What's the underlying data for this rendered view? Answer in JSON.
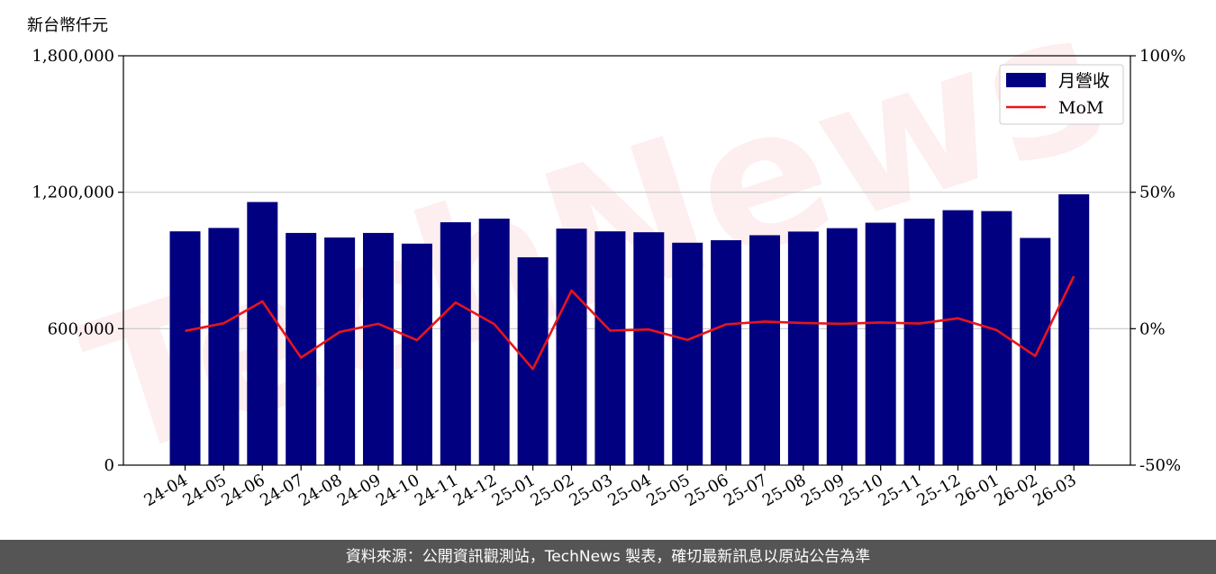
{
  "unit_label": "新台幣仟元",
  "footer_text": "資料來源：公開資訊觀測站，TechNews 製表，確切最新訊息以原站公告為準",
  "watermark": "TechNews",
  "colors": {
    "bar": "#000080",
    "line": "#e8141c",
    "grid": "#c8c8c8",
    "footer_bg": "#555555"
  },
  "chart_data": {
    "type": "bar",
    "categories": [
      "24-04",
      "24-05",
      "24-06",
      "24-07",
      "24-08",
      "24-09",
      "24-10",
      "24-11",
      "24-12",
      "25-01",
      "25-02",
      "25-03",
      "25-04",
      "25-05",
      "25-06",
      "25-07",
      "25-08",
      "25-09",
      "25-10",
      "25-11",
      "25-12",
      "26-01",
      "26-02",
      "26-03"
    ],
    "series": [
      {
        "name": "月營收",
        "type": "bar",
        "axis": "left",
        "values": [
          1028000,
          1043000,
          1157000,
          1021000,
          1001000,
          1021000,
          974000,
          1068000,
          1084000,
          914000,
          1040000,
          1028000,
          1024000,
          978000,
          989000,
          1011000,
          1027000,
          1042000,
          1066000,
          1084000,
          1121000,
          1117000,
          999000,
          1191000
        ]
      },
      {
        "name": "MoM",
        "type": "line",
        "axis": "right",
        "values": [
          -0.8,
          2.0,
          10.0,
          -10.6,
          -1.2,
          1.8,
          -4.2,
          9.6,
          1.7,
          -14.8,
          14.0,
          -0.7,
          -0.3,
          -4.1,
          1.6,
          2.6,
          2.1,
          1.8,
          2.3,
          1.9,
          3.8,
          -0.5,
          -10.0,
          19.2
        ]
      }
    ],
    "y_left": {
      "lim": [
        0,
        1800000
      ],
      "ticks": [
        0,
        600000,
        1200000,
        1800000
      ],
      "tick_labels": [
        "0",
        "600,000",
        "1,200,000",
        "1,800,000"
      ]
    },
    "y_right": {
      "lim": [
        -50,
        100
      ],
      "ticks": [
        -50,
        0,
        50,
        100
      ],
      "tick_labels": [
        "-50%",
        "0%",
        "50%",
        "100%"
      ]
    },
    "grid": "horizontal",
    "legend_placement": "top-right"
  }
}
